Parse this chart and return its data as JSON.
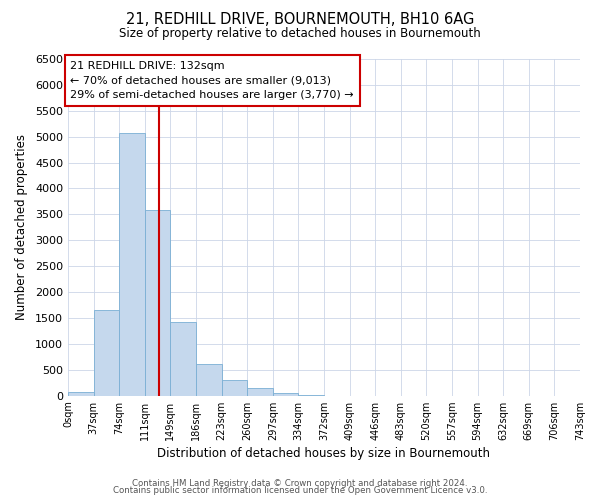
{
  "title": "21, REDHILL DRIVE, BOURNEMOUTH, BH10 6AG",
  "subtitle": "Size of property relative to detached houses in Bournemouth",
  "xlabel": "Distribution of detached houses by size in Bournemouth",
  "ylabel": "Number of detached properties",
  "footer_line1": "Contains HM Land Registry data © Crown copyright and database right 2024.",
  "footer_line2": "Contains public sector information licensed under the Open Government Licence v3.0.",
  "bin_labels": [
    "0sqm",
    "37sqm",
    "74sqm",
    "111sqm",
    "149sqm",
    "186sqm",
    "223sqm",
    "260sqm",
    "297sqm",
    "334sqm",
    "372sqm",
    "409sqm",
    "446sqm",
    "483sqm",
    "520sqm",
    "557sqm",
    "594sqm",
    "632sqm",
    "669sqm",
    "706sqm",
    "743sqm"
  ],
  "bar_values": [
    75,
    1650,
    5080,
    3590,
    1420,
    615,
    295,
    145,
    60,
    10,
    0,
    0,
    0,
    0,
    0,
    0,
    0,
    0,
    0,
    0
  ],
  "bar_color": "#c5d8ed",
  "bar_edge_color": "#7aafd4",
  "vline_color": "#cc0000",
  "annotation_title": "21 REDHILL DRIVE: 132sqm",
  "annotation_line2": "← 70% of detached houses are smaller (9,013)",
  "annotation_line3": "29% of semi-detached houses are larger (3,770) →",
  "annotation_box_color": "#cc0000",
  "annotation_bg": "#ffffff",
  "ylim": [
    0,
    6500
  ],
  "yticks": [
    0,
    500,
    1000,
    1500,
    2000,
    2500,
    3000,
    3500,
    4000,
    4500,
    5000,
    5500,
    6000,
    6500
  ],
  "background_color": "#ffffff",
  "grid_color": "#ccd6e8"
}
